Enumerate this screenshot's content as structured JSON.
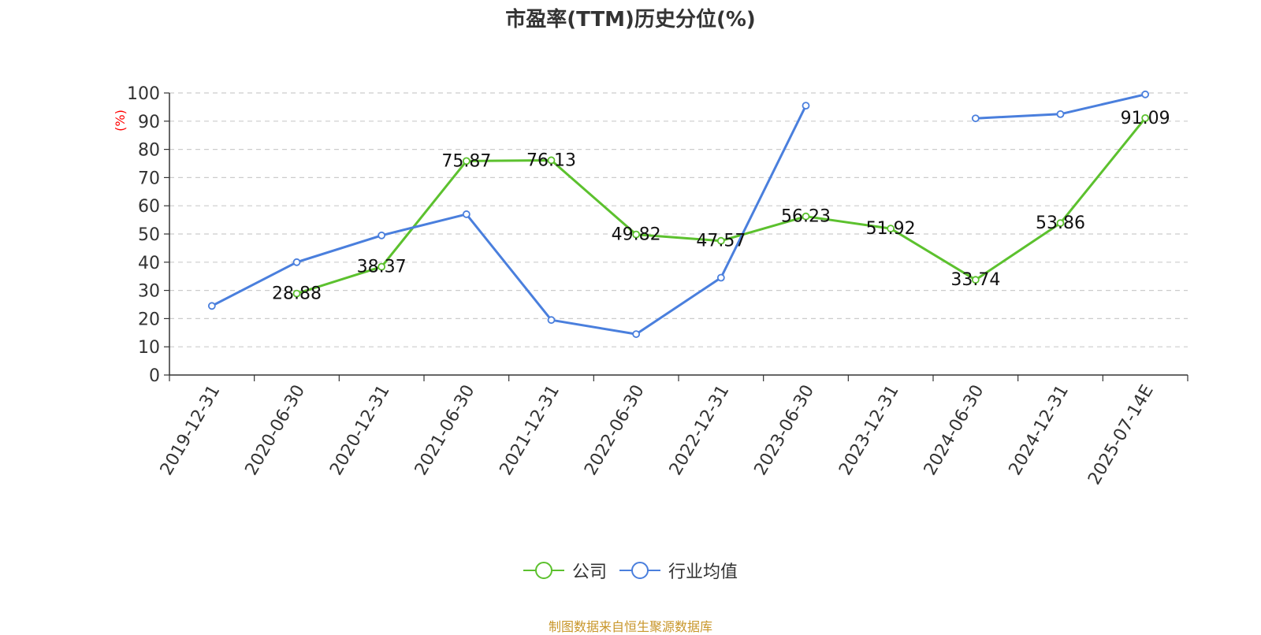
{
  "source_note": "制图数据来自恒生聚源数据库",
  "chart_data": {
    "type": "line",
    "title": "市盈率(TTM)历史分位(%)",
    "ylabel": "(%)",
    "xlabel": "",
    "ylim": [
      0,
      100
    ],
    "yticks": [
      0,
      10,
      20,
      30,
      40,
      50,
      60,
      70,
      80,
      90,
      100
    ],
    "grid": true,
    "legend_position": "bottom",
    "categories": [
      "2019-12-31",
      "2020-06-30",
      "2020-12-31",
      "2021-06-30",
      "2021-12-31",
      "2022-06-30",
      "2022-12-31",
      "2023-06-30",
      "2023-12-31",
      "2024-06-30",
      "2024-12-31",
      "2025-07-14E"
    ],
    "series": [
      {
        "name": "公司",
        "color": "#5cc12e",
        "show_labels": true,
        "values": [
          null,
          28.88,
          38.37,
          75.87,
          76.13,
          49.82,
          47.57,
          56.23,
          51.92,
          33.74,
          53.86,
          91.09
        ]
      },
      {
        "name": "行业均值",
        "color": "#4a7fdd",
        "show_labels": false,
        "values": [
          24.5,
          40,
          49.5,
          57,
          19.5,
          14.5,
          34.5,
          95.5,
          null,
          91,
          92.5,
          99.5
        ]
      }
    ]
  }
}
